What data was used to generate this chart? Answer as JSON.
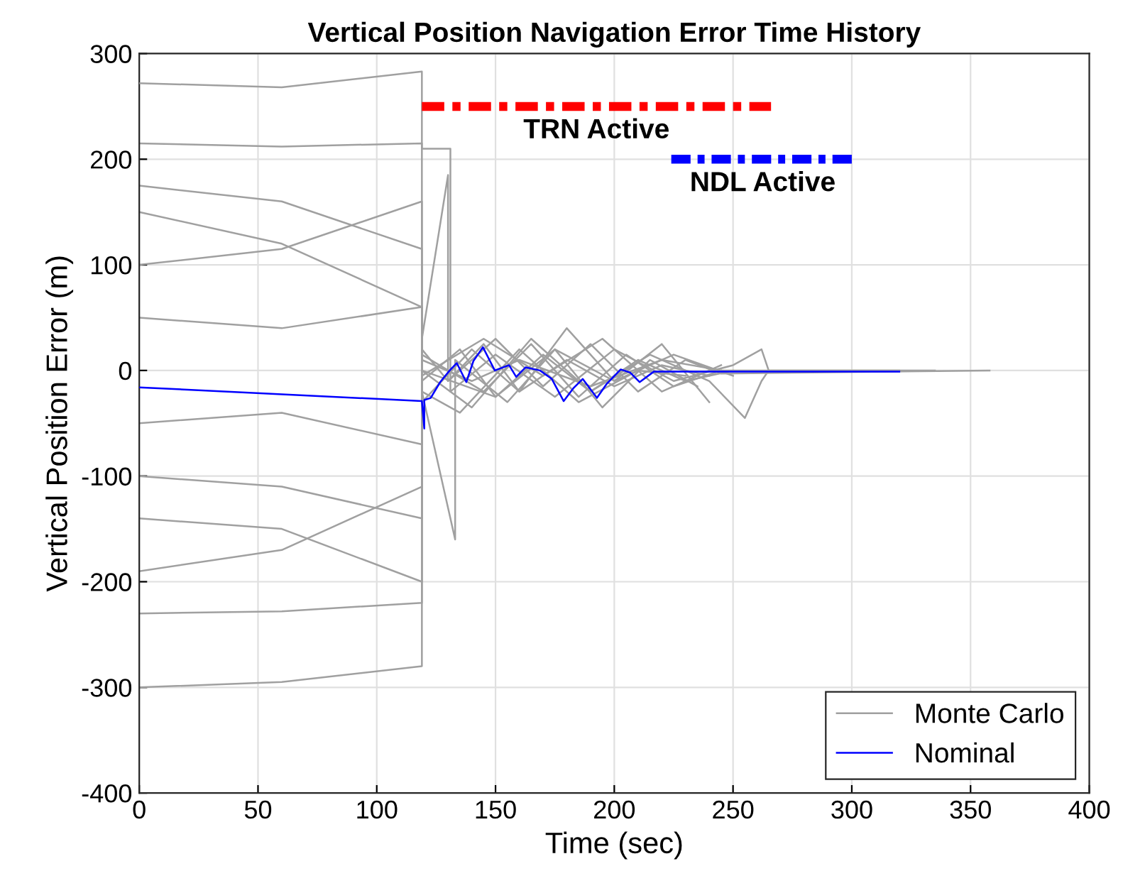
{
  "chart_data": {
    "type": "line",
    "title": "Vertical Position Navigation Error Time History",
    "xlabel": "Time (sec)",
    "ylabel": "Vertical Position Error (m)",
    "xlim": [
      0,
      400
    ],
    "xticks": [
      0,
      50,
      100,
      150,
      200,
      250,
      300,
      350,
      400
    ],
    "ylim": [
      -400,
      300
    ],
    "yticks": [
      -400,
      -300,
      -200,
      -100,
      0,
      100,
      200,
      300
    ],
    "grid": true,
    "legend": "bottom right",
    "marker": "none",
    "series": [
      {
        "name": "Monte Carlo",
        "color": "#a0a0a0",
        "line_style": "solid",
        "x": [
          0,
          60,
          119,
          119,
          130,
          145,
          160,
          180,
          200,
          220,
          240
        ],
        "values": [
          272,
          268,
          283,
          20,
          -10,
          25,
          -20,
          10,
          -15,
          5,
          -5
        ]
      },
      {
        "color": "#a0a0a0",
        "line_style": "solid",
        "x": [
          0,
          60,
          119,
          119,
          135,
          150,
          170,
          190,
          210,
          230,
          250
        ],
        "values": [
          -300,
          -295,
          -280,
          -10,
          20,
          -25,
          15,
          -20,
          10,
          -10,
          0
        ]
      },
      {
        "color": "#a0a0a0",
        "line_style": "solid",
        "x": [
          0,
          60,
          119,
          119,
          131,
          131,
          150,
          175,
          200,
          225,
          250,
          262,
          265,
          335
        ],
        "values": [
          215,
          212,
          215,
          210,
          210,
          -20,
          15,
          -25,
          20,
          -10,
          5,
          20,
          0,
          0
        ]
      },
      {
        "color": "#a0a0a0",
        "line_style": "solid",
        "x": [
          0,
          60,
          119,
          119,
          140,
          160,
          180,
          200,
          220,
          240
        ],
        "values": [
          -230,
          -228,
          -220,
          -30,
          20,
          -20,
          40,
          -10,
          25,
          -30
        ]
      },
      {
        "color": "#a0a0a0",
        "line_style": "solid",
        "x": [
          0,
          60,
          119,
          119,
          133,
          133,
          155,
          175,
          195,
          215,
          235
        ],
        "values": [
          150,
          120,
          60,
          -20,
          -160,
          10,
          -30,
          20,
          -35,
          10,
          -15
        ]
      },
      {
        "color": "#a0a0a0",
        "line_style": "solid",
        "x": [
          0,
          60,
          119,
          119,
          130,
          130,
          150,
          170,
          190,
          210,
          230,
          245,
          358
        ],
        "values": [
          -190,
          -170,
          -110,
          30,
          185,
          -10,
          30,
          -15,
          25,
          -20,
          10,
          -3,
          0
        ]
      },
      {
        "color": "#a0a0a0",
        "line_style": "solid",
        "x": [
          0,
          60,
          119,
          119,
          140,
          165,
          190,
          215,
          240,
          255,
          262,
          265
        ],
        "values": [
          100,
          115,
          160,
          0,
          -35,
          30,
          -20,
          15,
          -10,
          -45,
          -10,
          0
        ]
      },
      {
        "color": "#a0a0a0",
        "line_style": "solid",
        "x": [
          0,
          60,
          119,
          119,
          135,
          160,
          185,
          210,
          230
        ],
        "values": [
          -100,
          -110,
          -140,
          -20,
          -40,
          20,
          -30,
          0,
          -5
        ]
      },
      {
        "color": "#a0a0a0",
        "line_style": "solid",
        "x": [
          0,
          60,
          119,
          119,
          140,
          160,
          190,
          220,
          245,
          320
        ],
        "values": [
          50,
          40,
          60,
          10,
          -10,
          10,
          -15,
          10,
          0,
          0
        ]
      },
      {
        "color": "#a0a0a0",
        "line_style": "solid",
        "x": [
          0,
          60,
          119,
          119,
          150,
          175,
          200,
          225,
          250
        ],
        "values": [
          -50,
          -40,
          -70,
          0,
          -25,
          20,
          -10,
          15,
          -5
        ]
      },
      {
        "color": "#a0a0a0",
        "line_style": "solid",
        "x": [
          0,
          60,
          119,
          119,
          145,
          170,
          195,
          220,
          245
        ],
        "values": [
          175,
          160,
          115,
          -5,
          30,
          -5,
          30,
          -20,
          5
        ]
      },
      {
        "color": "#a0a0a0",
        "line_style": "solid",
        "x": [
          0,
          60,
          119,
          119,
          145,
          165,
          185,
          205,
          225,
          245
        ],
        "values": [
          -140,
          -150,
          -200,
          15,
          -20,
          25,
          -25,
          15,
          -15,
          0
        ]
      },
      {
        "name": "Nominal",
        "color": "#0000ff",
        "line_style": "solid",
        "x": [
          0,
          119,
          120,
          120,
          122.7,
          126.7,
          130.7,
          133.7,
          137.7,
          140.7,
          144.7,
          149.7,
          155.7,
          158.7,
          162.7,
          168.7,
          173.7,
          178.7,
          182.7,
          186.7,
          192.7,
          196.7,
          202.7,
          206.7,
          210.7,
          216.7,
          320
        ],
        "values": [
          -16,
          -29,
          -55,
          -28,
          -26,
          -11,
          0,
          7,
          -11,
          9,
          22,
          0,
          5,
          -6,
          3,
          0,
          -8,
          -29,
          -17,
          -8,
          -26,
          -13,
          1,
          -2,
          -11,
          -1,
          -1
        ]
      },
      {
        "name": "TRN Active",
        "color": "#ff0000",
        "line_style": "dashed",
        "x": [
          119,
          266
        ],
        "values": [
          250,
          250
        ]
      },
      {
        "name": "NDL Active",
        "color": "#0000ff",
        "line_style": "dashed",
        "x": [
          224,
          301
        ],
        "values": [
          200,
          200
        ]
      }
    ]
  }
}
